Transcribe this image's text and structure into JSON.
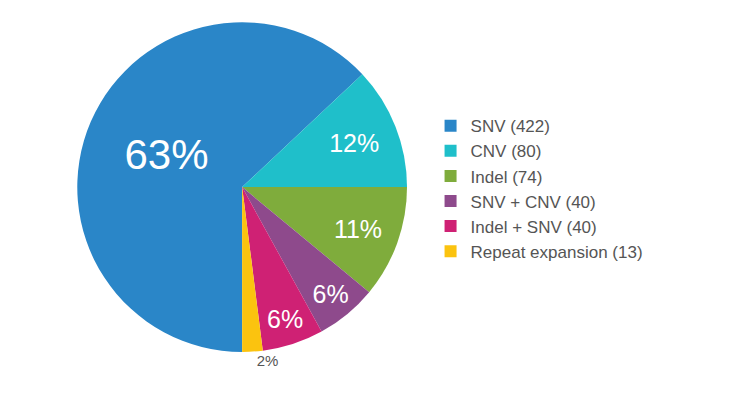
{
  "chart_data": {
    "type": "pie",
    "categories": [
      "SNV (422)",
      "CNV (80)",
      "Indel (74)",
      "SNV + CNV (40)",
      "Indel + SNV (40)",
      "Repeat expansion (13)"
    ],
    "values": [
      63,
      12,
      11,
      6,
      6,
      2
    ],
    "value_labels": [
      "63%",
      "12%",
      "11%",
      "6%",
      "6%",
      "2%"
    ],
    "colors": [
      "#2a86c8",
      "#1fbfca",
      "#7fac3c",
      "#8e4a8c",
      "#cf2174",
      "#fbc30f"
    ],
    "data_labels": true,
    "legend": "right"
  }
}
